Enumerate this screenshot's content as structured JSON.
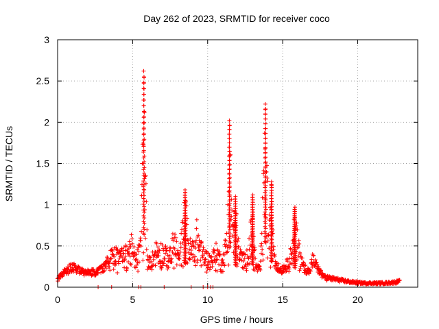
{
  "chart_data": {
    "type": "scatter",
    "title": "Day 262 of 2023, SRMTID for receiver coco",
    "xlabel": "GPS time / hours",
    "ylabel": "SRMTID / TECUs",
    "xlim": [
      0,
      24
    ],
    "ylim": [
      0,
      3
    ],
    "x_ticks": [
      0,
      5,
      10,
      15,
      20
    ],
    "x_tick_labels": [
      "0",
      "5",
      "10",
      "15",
      "20"
    ],
    "y_ticks": [
      0,
      0.5,
      1,
      1.5,
      2,
      2.5,
      3
    ],
    "y_tick_labels": [
      "0",
      "0.5",
      "1",
      "1.5",
      "2",
      "2.5",
      "3"
    ],
    "grid": true,
    "marker": "+",
    "series_color": "#ff0000",
    "x_range_of_points": [
      0,
      22.8
    ],
    "envelope": [
      [
        0.0,
        0.12
      ],
      [
        0.3,
        0.2
      ],
      [
        0.6,
        0.25
      ],
      [
        1.0,
        0.3
      ],
      [
        1.5,
        0.25
      ],
      [
        2.0,
        0.22
      ],
      [
        2.5,
        0.22
      ],
      [
        3.0,
        0.28
      ],
      [
        3.4,
        0.4
      ],
      [
        3.7,
        0.55
      ],
      [
        4.1,
        0.45
      ],
      [
        4.5,
        0.5
      ],
      [
        4.9,
        0.65
      ],
      [
        5.2,
        0.4
      ],
      [
        5.5,
        0.6
      ],
      [
        5.75,
        2.62
      ],
      [
        6.0,
        0.35
      ],
      [
        6.3,
        0.42
      ],
      [
        6.6,
        0.6
      ],
      [
        7.0,
        0.55
      ],
      [
        7.4,
        0.45
      ],
      [
        7.8,
        0.75
      ],
      [
        8.1,
        0.4
      ],
      [
        8.5,
        1.18
      ],
      [
        8.8,
        0.6
      ],
      [
        9.1,
        0.6
      ],
      [
        9.3,
        0.86
      ],
      [
        9.6,
        0.55
      ],
      [
        9.9,
        0.45
      ],
      [
        10.2,
        0.4
      ],
      [
        10.6,
        0.55
      ],
      [
        11.0,
        0.35
      ],
      [
        11.3,
        0.8
      ],
      [
        11.45,
        2.02
      ],
      [
        11.7,
        0.9
      ],
      [
        11.85,
        1.1
      ],
      [
        12.1,
        0.5
      ],
      [
        12.5,
        0.4
      ],
      [
        12.8,
        0.65
      ],
      [
        13.0,
        1.12
      ],
      [
        13.2,
        0.3
      ],
      [
        13.5,
        0.25
      ],
      [
        13.85,
        2.22
      ],
      [
        14.1,
        0.8
      ],
      [
        14.25,
        1.28
      ],
      [
        14.5,
        0.4
      ],
      [
        14.8,
        0.25
      ],
      [
        15.2,
        0.3
      ],
      [
        15.5,
        0.45
      ],
      [
        15.8,
        0.97
      ],
      [
        16.1,
        0.55
      ],
      [
        16.4,
        0.3
      ],
      [
        16.8,
        0.22
      ],
      [
        17.0,
        0.42
      ],
      [
        17.4,
        0.25
      ],
      [
        17.8,
        0.15
      ],
      [
        18.5,
        0.12
      ],
      [
        19.0,
        0.1
      ],
      [
        19.5,
        0.08
      ],
      [
        20.5,
        0.06
      ],
      [
        21.5,
        0.06
      ],
      [
        22.3,
        0.07
      ],
      [
        22.8,
        0.09
      ]
    ],
    "zero_points_x": [
      2.7,
      3.6,
      5.4,
      5.55,
      7.1,
      8.9,
      9.7,
      10.0,
      10.2,
      10.35
    ]
  }
}
